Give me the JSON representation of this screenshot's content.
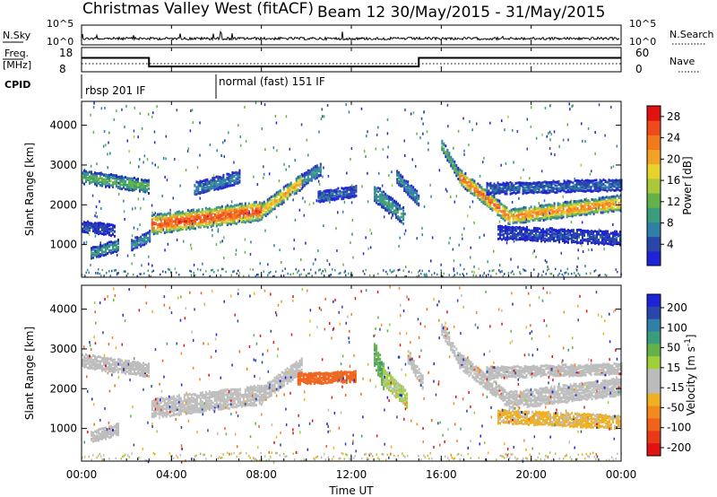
{
  "header": {
    "title_left": "Christmas Valley West (fitACF)",
    "title_right": "Beam 12  30/May/2015 - 31/May/2015"
  },
  "nsky_panel": {
    "left_label": "N.Sky",
    "right_label": "N.Search",
    "left_ticks": [
      "10^5",
      "10^0"
    ],
    "right_ticks": [
      "10^5",
      "10^0"
    ]
  },
  "freq_panel": {
    "left_label_line1": "Freq.",
    "left_label_line2": "[MHz]",
    "right_label": "Nave",
    "left_ticks": [
      "18",
      "8"
    ],
    "right_ticks": [
      "60",
      "0"
    ],
    "freq_steps": [
      {
        "start_hour": 0,
        "end_hour": 3,
        "mhz": 14.6
      },
      {
        "start_hour": 3,
        "end_hour": 15,
        "mhz": 10.2
      },
      {
        "start_hour": 15,
        "end_hour": 24,
        "mhz": 14.6
      }
    ]
  },
  "cpid_panel": {
    "label": "CPID",
    "programs": [
      {
        "start_hour": 0,
        "label": "rbsp 201 IF"
      },
      {
        "start_hour": 6,
        "label": "normal (fast) 151 IF"
      }
    ]
  },
  "x_axis": {
    "label": "Time UT",
    "ticks": [
      "00:00",
      "04:00",
      "08:00",
      "12:00",
      "16:00",
      "20:00",
      "00:00"
    ]
  },
  "chart_data": [
    {
      "type": "heatmap",
      "name": "power",
      "xlabel": "Time UT",
      "ylabel": "Slant Range [km]",
      "xlim_hours": [
        0,
        24
      ],
      "ylim_km": [
        180,
        4600
      ],
      "y_ticks": [
        "4000",
        "3000",
        "2000",
        "1000"
      ],
      "y_tick_values": [
        4000,
        3000,
        2000,
        1000
      ],
      "colorbar": {
        "label": "Power [dB]",
        "ticks": [
          "28",
          "24",
          "20",
          "16",
          "12",
          "8",
          "4"
        ],
        "tick_values": [
          28,
          24,
          20,
          16,
          12,
          8,
          4
        ],
        "range": [
          0,
          30
        ],
        "colors": [
          "#1f23d6",
          "#2a46a8",
          "#2f7fa7",
          "#3a9c7c",
          "#64b14a",
          "#a9c93a",
          "#e8d22c",
          "#f2a224",
          "#f3791d",
          "#f04a1a",
          "#e31212"
        ]
      },
      "bands": [
        {
          "t": [
            0.0,
            3.0
          ],
          "r": [
            2700,
            2450
          ],
          "width": 300,
          "power": 12
        },
        {
          "t": [
            0.4,
            1.6
          ],
          "r": [
            780,
            980
          ],
          "width": 250,
          "power": 10
        },
        {
          "t": [
            0.0,
            1.5
          ],
          "r": [
            1450,
            1350
          ],
          "width": 250,
          "power": 4
        },
        {
          "t": [
            2.2,
            3.0
          ],
          "r": [
            1000,
            1200
          ],
          "width": 250,
          "power": 8
        },
        {
          "t": [
            3.1,
            8.0
          ],
          "r": [
            1500,
            1850
          ],
          "width": 450,
          "power": 26
        },
        {
          "t": [
            8.0,
            9.8
          ],
          "r": [
            1850,
            2600
          ],
          "width": 350,
          "power": 20
        },
        {
          "t": [
            9.8,
            10.6
          ],
          "r": [
            2600,
            2900
          ],
          "width": 300,
          "power": 9
        },
        {
          "t": [
            10.5,
            12.2
          ],
          "r": [
            2200,
            2350
          ],
          "width": 250,
          "power": 5
        },
        {
          "t": [
            5.0,
            7.0
          ],
          "r": [
            2400,
            2700
          ],
          "width": 300,
          "power": 7
        },
        {
          "t": [
            13.0,
            14.3
          ],
          "r": [
            2300,
            1700
          ],
          "width": 400,
          "power": 10
        },
        {
          "t": [
            14.0,
            15.0
          ],
          "r": [
            2700,
            2100
          ],
          "width": 300,
          "power": 8
        },
        {
          "t": [
            16.0,
            16.8
          ],
          "r": [
            3500,
            2700
          ],
          "width": 250,
          "power": 12
        },
        {
          "t": [
            16.8,
            19.0
          ],
          "r": [
            2700,
            1700
          ],
          "width": 350,
          "power": 24
        },
        {
          "t": [
            19.0,
            24.0
          ],
          "r": [
            1700,
            2050
          ],
          "width": 350,
          "power": 22
        },
        {
          "t": [
            18.0,
            24.0
          ],
          "r": [
            2400,
            2500
          ],
          "width": 250,
          "power": 6
        },
        {
          "t": [
            18.5,
            24.0
          ],
          "r": [
            1300,
            1150
          ],
          "width": 300,
          "power": 4
        }
      ]
    },
    {
      "type": "heatmap",
      "name": "velocity",
      "xlabel": "Time UT",
      "ylabel": "Slant Range [km]",
      "xlim_hours": [
        0,
        24
      ],
      "ylim_km": [
        180,
        4600
      ],
      "y_ticks": [
        "4000",
        "3000",
        "2000",
        "1000"
      ],
      "y_tick_values": [
        4000,
        3000,
        2000,
        1000
      ],
      "colorbar": {
        "label": "Velocity [m s",
        "label_sup": "-1",
        "label_close": "]",
        "ticks": [
          "200",
          "100",
          "50",
          "15",
          "-15",
          "-50",
          "-100",
          "-200"
        ],
        "tick_values": [
          200,
          100,
          50,
          15,
          -15,
          -50,
          -100,
          -200
        ],
        "colors": [
          "#1f23d6",
          "#2a46a8",
          "#2f7fa7",
          "#3a9c7c",
          "#64b14a",
          "#9fd03a",
          "#bbbbbb",
          "#bbbbbb",
          "#f0b020",
          "#f28a1e",
          "#f0621a",
          "#e83a18",
          "#e31212"
        ]
      },
      "bands": [
        {
          "t": [
            0.0,
            3.0
          ],
          "r": [
            2700,
            2450
          ],
          "width": 300,
          "vel": 0
        },
        {
          "t": [
            0.4,
            1.6
          ],
          "r": [
            780,
            980
          ],
          "width": 250,
          "vel": 0
        },
        {
          "t": [
            3.1,
            8.0
          ],
          "r": [
            1500,
            1850
          ],
          "width": 450,
          "vel": 0
        },
        {
          "t": [
            8.0,
            9.8
          ],
          "r": [
            1850,
            2600
          ],
          "width": 350,
          "vel": 0
        },
        {
          "t": [
            9.6,
            12.2
          ],
          "r": [
            2250,
            2300
          ],
          "width": 250,
          "vel": -120
        },
        {
          "t": [
            13.0,
            13.4
          ],
          "r": [
            2900,
            2300
          ],
          "width": 600,
          "vel": 45
        },
        {
          "t": [
            13.4,
            14.5
          ],
          "r": [
            2300,
            1700
          ],
          "width": 400,
          "vel": 20
        },
        {
          "t": [
            14.5,
            15.2
          ],
          "r": [
            2800,
            2100
          ],
          "width": 300,
          "vel": 0
        },
        {
          "t": [
            16.0,
            16.8
          ],
          "r": [
            3500,
            2700
          ],
          "width": 250,
          "vel": 0
        },
        {
          "t": [
            16.8,
            19.0
          ],
          "r": [
            2700,
            1700
          ],
          "width": 350,
          "vel": 0
        },
        {
          "t": [
            19.0,
            24.0
          ],
          "r": [
            1700,
            2050
          ],
          "width": 400,
          "vel": 0
        },
        {
          "t": [
            18.0,
            24.0
          ],
          "r": [
            2400,
            2500
          ],
          "width": 250,
          "vel": 0
        },
        {
          "t": [
            18.5,
            24.0
          ],
          "r": [
            1300,
            1150
          ],
          "width": 300,
          "vel": -20
        }
      ]
    }
  ]
}
